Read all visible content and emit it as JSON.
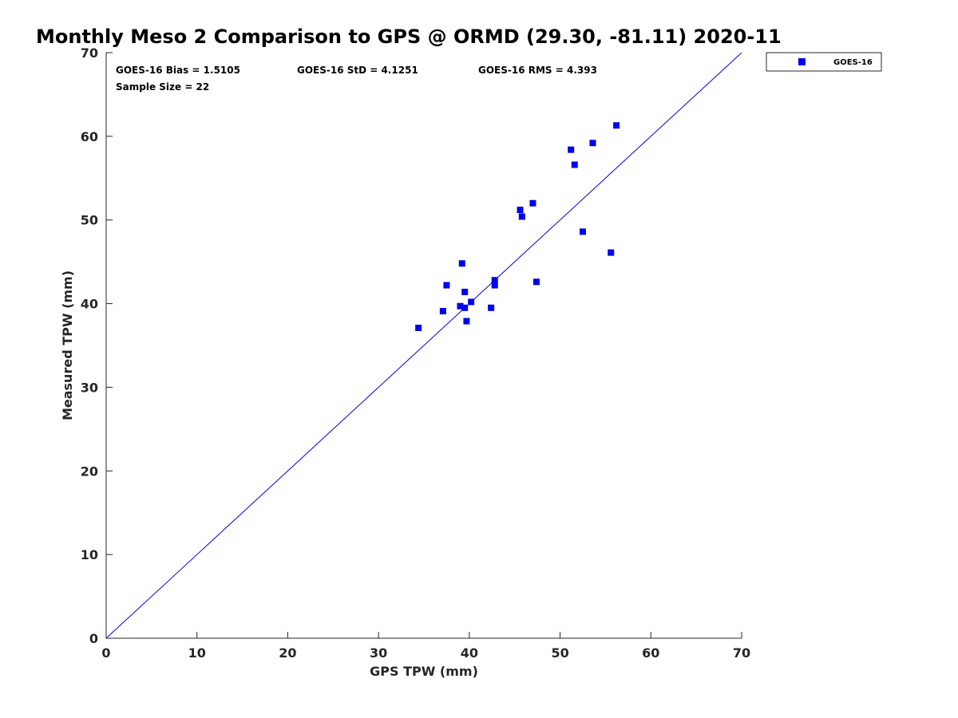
{
  "chart_data": {
    "type": "scatter",
    "title": "Monthly Meso 2 Comparison to GPS @ ORMD (29.30, -81.11) 2020-11",
    "xlabel": "GPS TPW (mm)",
    "ylabel": "Measured TPW (mm)",
    "xlim": [
      0,
      70
    ],
    "ylim": [
      0,
      70
    ],
    "xticks": [
      0,
      10,
      20,
      30,
      40,
      50,
      60,
      70
    ],
    "yticks": [
      0,
      10,
      20,
      30,
      40,
      50,
      60,
      70
    ],
    "grid": false,
    "legend_position": "outside top-right",
    "colors": {
      "series": "#0000ee",
      "axis": "#262626"
    },
    "reference_line": {
      "name": "1:1 line",
      "x": [
        0,
        70
      ],
      "y": [
        0,
        70
      ]
    },
    "series": [
      {
        "name": "GOES-16",
        "marker": "square",
        "points": [
          {
            "x": 34.4,
            "y": 37.1
          },
          {
            "x": 37.1,
            "y": 39.1
          },
          {
            "x": 37.5,
            "y": 42.2
          },
          {
            "x": 39.0,
            "y": 39.7
          },
          {
            "x": 39.2,
            "y": 44.8
          },
          {
            "x": 39.5,
            "y": 39.5
          },
          {
            "x": 39.5,
            "y": 41.4
          },
          {
            "x": 39.7,
            "y": 37.9
          },
          {
            "x": 40.2,
            "y": 40.2
          },
          {
            "x": 42.4,
            "y": 39.5
          },
          {
            "x": 42.8,
            "y": 42.8
          },
          {
            "x": 42.8,
            "y": 42.2
          },
          {
            "x": 45.6,
            "y": 51.2
          },
          {
            "x": 45.8,
            "y": 50.4
          },
          {
            "x": 47.0,
            "y": 52.0
          },
          {
            "x": 47.4,
            "y": 42.6
          },
          {
            "x": 51.2,
            "y": 58.4
          },
          {
            "x": 51.6,
            "y": 56.6
          },
          {
            "x": 52.5,
            "y": 48.6
          },
          {
            "x": 53.6,
            "y": 59.2
          },
          {
            "x": 55.6,
            "y": 46.1
          },
          {
            "x": 56.2,
            "y": 61.3
          }
        ]
      }
    ],
    "annotations": {
      "bias": "GOES-16 Bias = 1.5105",
      "std": "GOES-16 StD = 4.1251",
      "rms": "GOES-16 RMS = 4.393",
      "sample_size": "Sample Size = 22"
    }
  }
}
